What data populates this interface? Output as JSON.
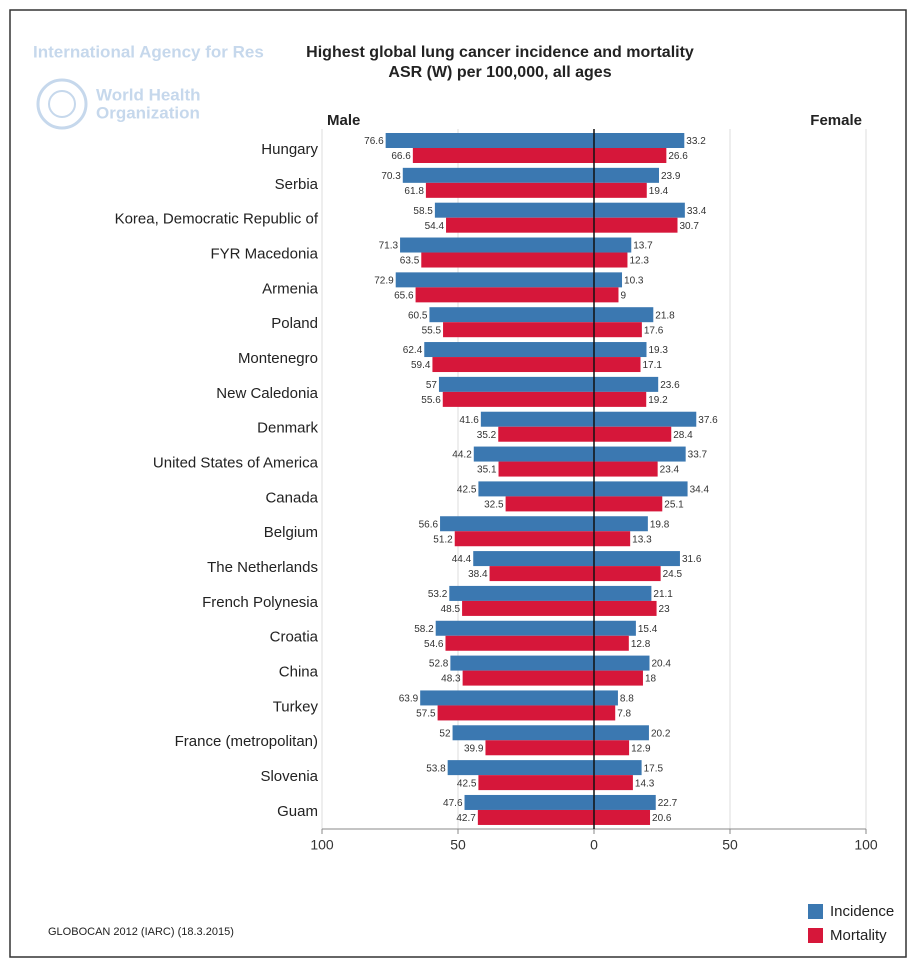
{
  "chart_data": {
    "type": "bar",
    "orientation": "horizontal",
    "title": "Highest global lung cancer incidence and mortality",
    "subtitle": "ASR (W) per 100,000, all ages",
    "source": "GLOBOCAN 2012 (IARC) (18.3.2015)",
    "logo": {
      "agency": "International Agency for Res",
      "who_line1": "World Health",
      "who_line2": "Organization"
    },
    "categories": [
      "Hungary",
      "Serbia",
      "Korea, Democratic Republic of",
      "FYR Macedonia",
      "Armenia",
      "Poland",
      "Montenegro",
      "New Caledonia",
      "Denmark",
      "United States of America",
      "Canada",
      "Belgium",
      "The Netherlands",
      "French Polynesia",
      "Croatia",
      "China",
      "Turkey",
      "France (metropolitan)",
      "Slovenia",
      "Guam"
    ],
    "series": [
      {
        "name": "Incidence",
        "color": "#3b78b1"
      },
      {
        "name": "Mortality",
        "color": "#d6173a"
      }
    ],
    "grid": true,
    "panels": [
      {
        "label": "Male",
        "direction": "left",
        "xlim": [
          0,
          100
        ],
        "xticks": [
          100,
          50,
          0
        ],
        "values": [
          [
            76.6,
            70.3,
            58.5,
            71.3,
            72.9,
            60.5,
            62.4,
            57,
            41.6,
            44.2,
            42.5,
            56.6,
            44.4,
            53.2,
            58.2,
            52.8,
            63.9,
            52,
            53.8,
            47.6
          ],
          [
            66.6,
            61.8,
            54.4,
            63.5,
            65.6,
            55.5,
            59.4,
            55.6,
            35.2,
            35.1,
            32.5,
            51.2,
            38.4,
            48.5,
            54.6,
            48.3,
            57.5,
            39.9,
            42.5,
            42.7
          ]
        ]
      },
      {
        "label": "Female",
        "direction": "right",
        "xlim": [
          0,
          100
        ],
        "xticks": [
          50,
          100
        ],
        "values": [
          [
            33.2,
            23.9,
            33.4,
            13.7,
            10.3,
            21.8,
            19.3,
            23.6,
            37.6,
            33.7,
            34.4,
            19.8,
            31.6,
            21.1,
            15.4,
            20.4,
            8.8,
            20.2,
            17.5,
            22.7
          ],
          [
            26.6,
            19.4,
            30.7,
            12.3,
            9,
            17.6,
            17.1,
            19.2,
            28.4,
            23.4,
            25.1,
            13.3,
            24.5,
            23,
            12.8,
            18,
            7.8,
            12.9,
            14.3,
            20.6
          ]
        ]
      }
    ],
    "legend_position": "bottom-right"
  }
}
